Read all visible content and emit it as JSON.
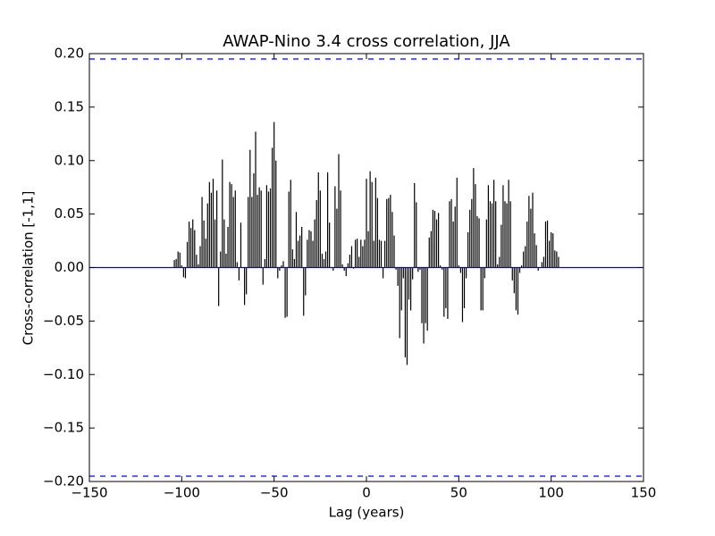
{
  "chart_data": {
    "type": "xcorr",
    "title": "AWAP-Nino 3.4 cross correlation, JJA",
    "xlabel": "Lag (years)",
    "ylabel": "Cross-correlation [-1,1]",
    "x": [
      -104,
      -103,
      -102,
      -101,
      -100,
      -99,
      -98,
      -97,
      -96,
      -95,
      -94,
      -93,
      -92,
      -91,
      -90,
      -89,
      -88,
      -87,
      -86,
      -85,
      -84,
      -83,
      -82,
      -81,
      -80,
      -79,
      -78,
      -77,
      -76,
      -75,
      -74,
      -73,
      -72,
      -71,
      -70,
      -69,
      -68,
      -67,
      -66,
      -65,
      -64,
      -63,
      -62,
      -61,
      -60,
      -59,
      -58,
      -57,
      -56,
      -55,
      -54,
      -53,
      -52,
      -51,
      -50,
      -49,
      -48,
      -47,
      -46,
      -45,
      -44,
      -43,
      -42,
      -41,
      -40,
      -39,
      -38,
      -37,
      -36,
      -35,
      -34,
      -33,
      -32,
      -31,
      -30,
      -29,
      -28,
      -27,
      -26,
      -25,
      -24,
      -23,
      -22,
      -21,
      -20,
      -19,
      -18,
      -17,
      -16,
      -15,
      -14,
      -13,
      -12,
      -11,
      -10,
      -9,
      -8,
      -7,
      -6,
      -5,
      -4,
      -3,
      -2,
      -1,
      0,
      1,
      2,
      3,
      4,
      5,
      6,
      7,
      8,
      9,
      10,
      11,
      12,
      13,
      14,
      15,
      16,
      17,
      18,
      19,
      20,
      21,
      22,
      23,
      24,
      25,
      26,
      27,
      28,
      29,
      30,
      31,
      32,
      33,
      34,
      35,
      36,
      37,
      38,
      39,
      40,
      41,
      42,
      43,
      44,
      45,
      46,
      47,
      48,
      49,
      50,
      51,
      52,
      53,
      54,
      55,
      56,
      57,
      58,
      59,
      60,
      61,
      62,
      63,
      64,
      65,
      66,
      67,
      68,
      69,
      70,
      71,
      72,
      73,
      74,
      75,
      76,
      77,
      78,
      79,
      80,
      81,
      82,
      83,
      84,
      85,
      86,
      87,
      88,
      89,
      90,
      91,
      92,
      93,
      94,
      95,
      96,
      97,
      98,
      99,
      100,
      101,
      102,
      103,
      104
    ],
    "values": [
      0.007,
      0.008,
      0.015,
      0.014,
      0.002,
      -0.009,
      -0.01,
      0.024,
      0.043,
      0.037,
      0.045,
      0.035,
      0.012,
      0.003,
      0.02,
      0.066,
      0.044,
      0.027,
      0.06,
      0.08,
      0.07,
      0.083,
      0.045,
      0.072,
      -0.036,
      0.015,
      0.101,
      0.045,
      0.013,
      0.038,
      0.08,
      0.078,
      0.066,
      0.072,
      0.005,
      -0.012,
      0.042,
      0.0,
      -0.035,
      -0.025,
      0.066,
      0.11,
      0.066,
      0.088,
      0.127,
      0.068,
      0.075,
      0.072,
      -0.016,
      0.008,
      0.077,
      0.071,
      0.074,
      0.112,
      0.136,
      0.1,
      -0.01,
      -0.003,
      0.002,
      0.006,
      -0.047,
      -0.046,
      0.071,
      0.082,
      0.017,
      0.008,
      0.052,
      0.025,
      0.03,
      0.038,
      -0.045,
      -0.026,
      0.026,
      0.035,
      0.034,
      0.025,
      0.045,
      0.063,
      0.089,
      0.072,
      0.013,
      0.008,
      0.015,
      0.089,
      0.042,
      0.0,
      -0.003,
      0.076,
      0.055,
      0.106,
      0.072,
      0.003,
      -0.003,
      -0.008,
      0.004,
      0.012,
      0.02,
      -0.001,
      0.026,
      0.027,
      0.01,
      0.026,
      0.02,
      0.026,
      0.083,
      0.034,
      0.09,
      0.08,
      0.025,
      0.084,
      0.065,
      0.026,
      0.025,
      -0.01,
      0.025,
      0.064,
      0.065,
      0.068,
      0.052,
      0.03,
      -0.002,
      -0.017,
      -0.066,
      -0.04,
      -0.01,
      -0.084,
      -0.091,
      -0.03,
      -0.04,
      -0.011,
      0.079,
      0.061,
      -0.004,
      -0.002,
      -0.052,
      -0.071,
      -0.052,
      -0.059,
      0.028,
      0.034,
      0.054,
      0.053,
      0.045,
      0.051,
      0.002,
      -0.002,
      -0.046,
      -0.038,
      -0.048,
      0.062,
      0.064,
      0.043,
      0.057,
      0.084,
      0.002,
      -0.005,
      -0.051,
      -0.038,
      -0.01,
      0.033,
      0.054,
      0.064,
      0.093,
      0.078,
      0.048,
      0.046,
      -0.04,
      -0.04,
      -0.01,
      0.045,
      0.077,
      0.062,
      0.06,
      0.082,
      0.062,
      0.003,
      0.01,
      0.04,
      0.077,
      0.062,
      0.06,
      0.082,
      0.062,
      -0.012,
      -0.024,
      -0.04,
      -0.044,
      -0.005,
      0.002,
      0.015,
      0.02,
      0.043,
      0.067,
      0.055,
      0.07,
      0.032,
      0.021,
      -0.003,
      0.0,
      0.005,
      0.01,
      0.043,
      0.044,
      0.025,
      0.033,
      0.032,
      0.016,
      0.015,
      0.01
    ],
    "color": "#000000",
    "baseline": 0,
    "confidence_lines": [
      0.195,
      -0.195
    ],
    "line_color": "#0000ff",
    "xlim": [
      -150,
      150
    ],
    "ylim": [
      -0.2,
      0.2
    ],
    "xticks": [
      {
        "value": -150,
        "label": "−150"
      },
      {
        "value": -100,
        "label": "−100"
      },
      {
        "value": -50,
        "label": "−50"
      },
      0,
      50,
      100,
      150
    ],
    "yticks": [
      {
        "value": -0.2,
        "label": "−0.20"
      },
      {
        "value": -0.15,
        "label": "−0.15"
      },
      {
        "value": -0.1,
        "label": "−0.10"
      },
      {
        "value": -0.05,
        "label": "−0.05"
      },
      {
        "value": 0,
        "label": "0.00"
      },
      {
        "value": 0.05,
        "label": "0.05"
      },
      {
        "value": 0.1,
        "label": "0.10"
      },
      {
        "value": 0.15,
        "label": "0.15"
      },
      {
        "value": 0.2,
        "label": "0.20"
      }
    ],
    "grid": false
  }
}
